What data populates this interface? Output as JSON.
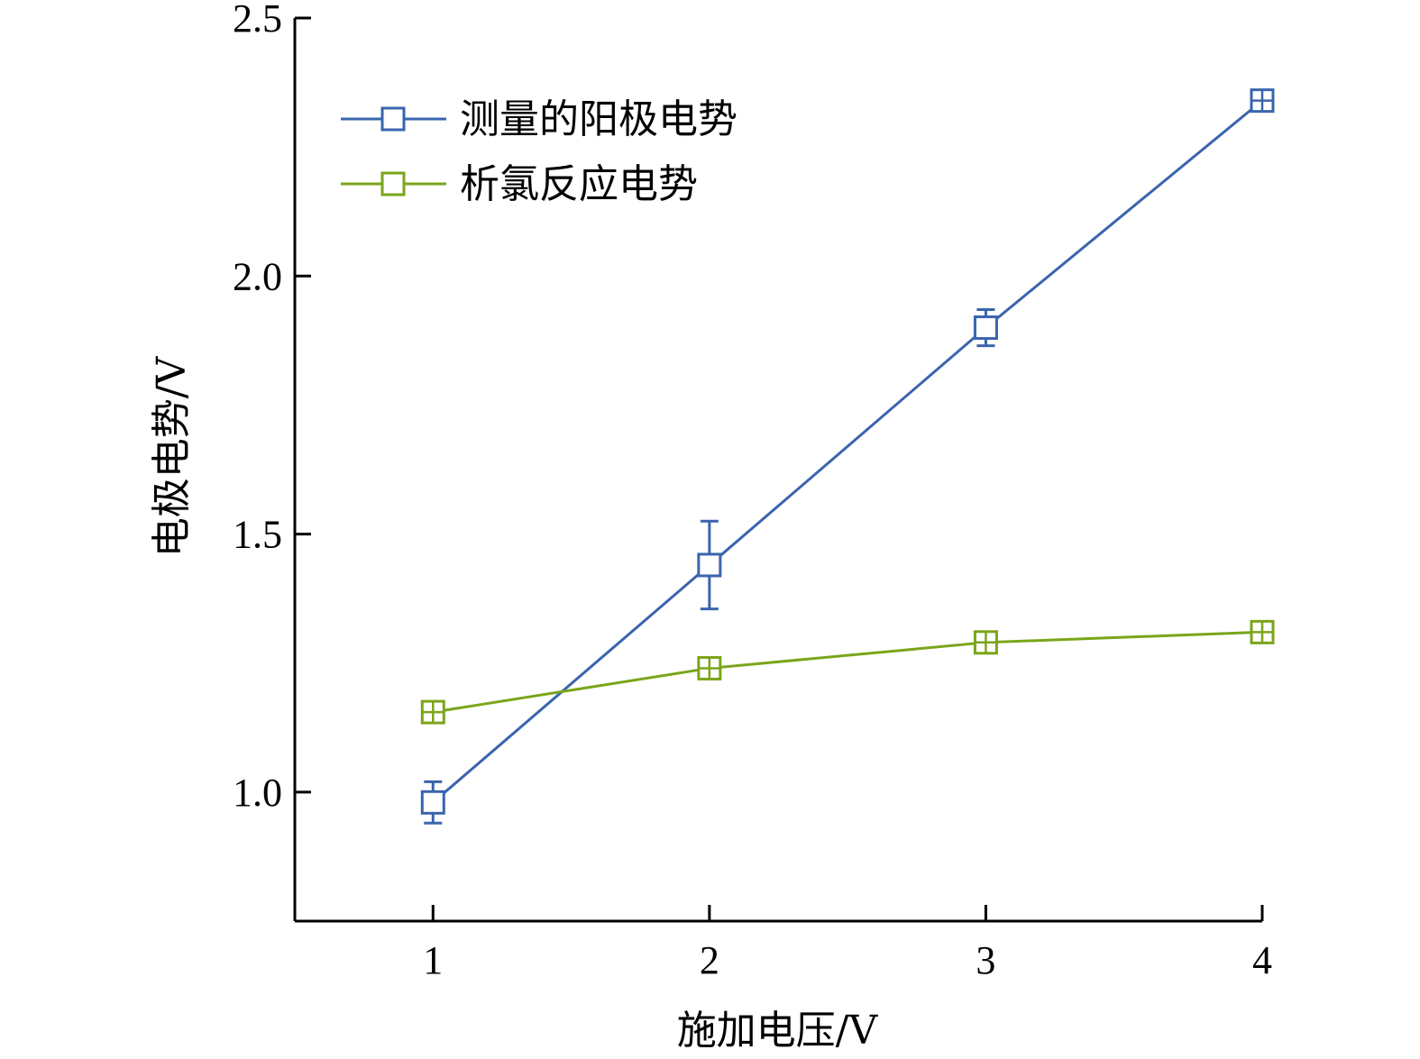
{
  "chart_data": {
    "type": "line",
    "xlabel": "施加电压/V",
    "ylabel": "电极电势/V",
    "xlim": [
      0.5,
      4.0
    ],
    "ylim": [
      0.75,
      2.5
    ],
    "x": [
      1,
      2,
      3,
      4
    ],
    "x_ticks": [
      "1",
      "2",
      "3",
      "4"
    ],
    "y_ticks": [
      "1.0",
      "1.5",
      "2.0",
      "2.5"
    ],
    "grid": false,
    "legend_position": "top-left",
    "series": [
      {
        "name": "测量的阳极电势",
        "color": "#3a64ad",
        "marker": "open-square",
        "values": [
          0.98,
          1.44,
          1.9,
          2.34
        ],
        "errors": [
          0.04,
          0.085,
          0.035,
          0.01
        ]
      },
      {
        "name": "析氯反应电势",
        "color": "#7aa51a",
        "marker": "open-square",
        "values": [
          1.155,
          1.24,
          1.29,
          1.31
        ],
        "errors": [
          0.01,
          0.01,
          0.01,
          0.01
        ]
      }
    ]
  }
}
